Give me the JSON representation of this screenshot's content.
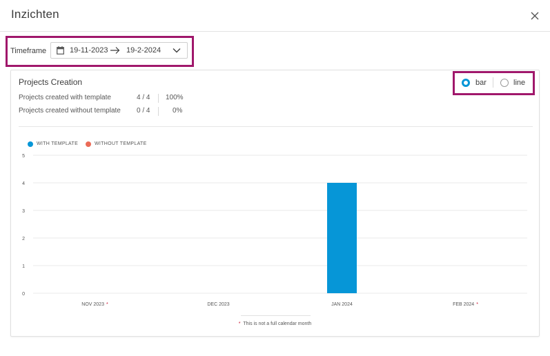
{
  "dialog": {
    "title": "Inzichten",
    "close_icon": "close-icon"
  },
  "timeframe": {
    "label": "Timeframe",
    "start": "19-11-2023",
    "end": "19-2-2024",
    "highlight_color": "#a0176b"
  },
  "card": {
    "title": "Projects Creation",
    "stats": [
      {
        "label": "Projects created with template",
        "count": "4 / 4",
        "percent": "100%"
      },
      {
        "label": "Projects created without template",
        "count": "0 / 4",
        "percent": "0%"
      }
    ]
  },
  "view_toggle": {
    "options": [
      {
        "label": "bar",
        "checked": true
      },
      {
        "label": "line",
        "checked": false
      }
    ]
  },
  "chart_data": {
    "type": "bar",
    "categories": [
      "NOV 2023",
      "DEC 2023",
      "JAN 2024",
      "FEB 2024"
    ],
    "partial_month": [
      true,
      false,
      false,
      true
    ],
    "series": [
      {
        "name": "WITH TEMPLATE",
        "color": "#0696d7",
        "values": [
          0,
          0,
          4,
          0
        ]
      },
      {
        "name": "WITHOUT TEMPLATE",
        "color": "#eb6b57",
        "values": [
          0,
          0,
          0,
          0
        ]
      }
    ],
    "yticks": [
      "0",
      "1",
      "2",
      "3",
      "4",
      "5"
    ],
    "ylim": [
      0,
      5
    ],
    "grid": true,
    "legend": "top-left",
    "footnote_marker": "*",
    "footnote": "This is not a full calendar month"
  }
}
